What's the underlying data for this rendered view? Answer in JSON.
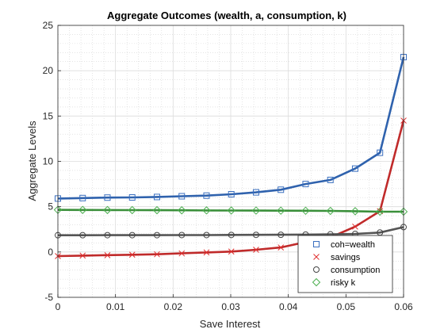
{
  "chart_data": {
    "type": "line",
    "title": "Aggregate Outcomes (wealth, a, consumption, k)",
    "xlabel": "Save Interest",
    "ylabel": "Aggregate Levels",
    "xlim": [
      0,
      0.06
    ],
    "ylim": [
      -5,
      25
    ],
    "xticks": [
      "0",
      "0.01",
      "0.02",
      "0.03",
      "0.04",
      "0.05",
      "0.06"
    ],
    "yticks": [
      "-5",
      "0",
      "5",
      "10",
      "15",
      "20",
      "25"
    ],
    "grid": true,
    "minor_grid": true,
    "legend_position": "bottom-right",
    "x": [
      0,
      0.0043,
      0.0086,
      0.0129,
      0.0172,
      0.0215,
      0.0258,
      0.0301,
      0.0344,
      0.0387,
      0.043,
      0.0473,
      0.0516,
      0.0559,
      0.06
    ],
    "series": [
      {
        "name": "coh=wealth",
        "marker": "square",
        "color": "#2f62ad",
        "marker_color": "#3a6fbf",
        "values": [
          5.9,
          5.95,
          6.0,
          6.02,
          6.07,
          6.15,
          6.22,
          6.37,
          6.58,
          6.87,
          7.5,
          7.95,
          9.2,
          10.95,
          21.5
        ]
      },
      {
        "name": "savings",
        "marker": "x",
        "color": "#c02a2a",
        "marker_color": "#e03030",
        "values": [
          -0.45,
          -0.4,
          -0.35,
          -0.3,
          -0.25,
          -0.15,
          -0.05,
          0.05,
          0.25,
          0.5,
          1.1,
          1.6,
          2.8,
          4.5,
          14.5
        ]
      },
      {
        "name": "consumption",
        "marker": "circle",
        "color": "#555555",
        "marker_color": "#444444",
        "values": [
          1.85,
          1.85,
          1.86,
          1.86,
          1.86,
          1.87,
          1.87,
          1.88,
          1.89,
          1.9,
          1.92,
          1.95,
          2.0,
          2.15,
          2.75
        ]
      },
      {
        "name": "risky k",
        "marker": "diamond",
        "color": "#3a8f3a",
        "marker_color": "#4caf50",
        "values": [
          4.65,
          4.64,
          4.63,
          4.62,
          4.61,
          4.6,
          4.59,
          4.58,
          4.57,
          4.56,
          4.55,
          4.53,
          4.5,
          4.45,
          4.45
        ]
      }
    ]
  }
}
